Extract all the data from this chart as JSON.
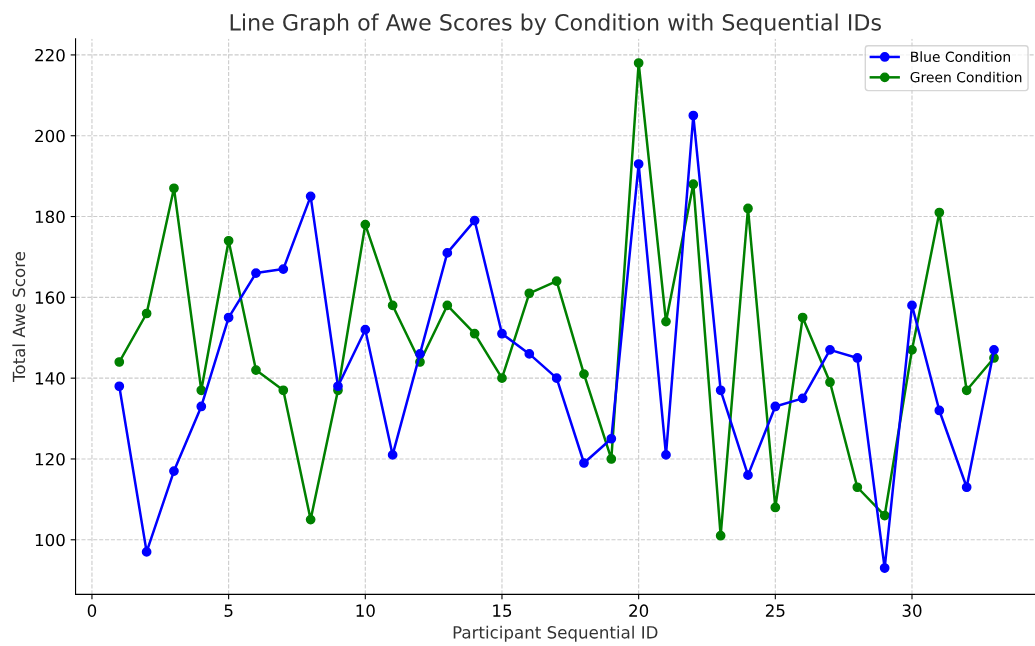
{
  "chart_data": {
    "type": "line",
    "title": "Line Graph of Awe Scores by Condition with Sequential IDs",
    "xlabel": "Participant Sequential ID",
    "ylabel": "Total Awe Score",
    "x": [
      1,
      2,
      3,
      4,
      5,
      6,
      7,
      8,
      9,
      10,
      11,
      12,
      13,
      14,
      15,
      16,
      17,
      18,
      19,
      20,
      21,
      22,
      23,
      24,
      25,
      26,
      27,
      28,
      29,
      30,
      31,
      32,
      33
    ],
    "series": [
      {
        "name": "Blue Condition",
        "color": "#0000ff",
        "values": [
          138,
          97,
          117,
          133,
          155,
          166,
          167,
          185,
          138,
          152,
          121,
          146,
          171,
          179,
          151,
          146,
          140,
          119,
          125,
          193,
          121,
          205,
          137,
          116,
          133,
          135,
          147,
          145,
          93,
          158,
          132,
          113,
          147
        ]
      },
      {
        "name": "Green Condition",
        "color": "#008000",
        "values": [
          144,
          156,
          187,
          137,
          174,
          142,
          137,
          105,
          137,
          178,
          158,
          144,
          158,
          151,
          140,
          161,
          164,
          141,
          120,
          218,
          154,
          188,
          101,
          182,
          108,
          155,
          139,
          113,
          106,
          147,
          181,
          137,
          145
        ]
      }
    ],
    "xlim": [
      -0.6,
      34.5
    ],
    "ylim": [
      86.5,
      224
    ],
    "xticks": [
      0,
      5,
      10,
      15,
      20,
      25,
      30
    ],
    "yticks": [
      100,
      120,
      140,
      160,
      180,
      200,
      220
    ],
    "grid": true,
    "legend": "top right",
    "marker": "circle",
    "line_style": "solid"
  }
}
